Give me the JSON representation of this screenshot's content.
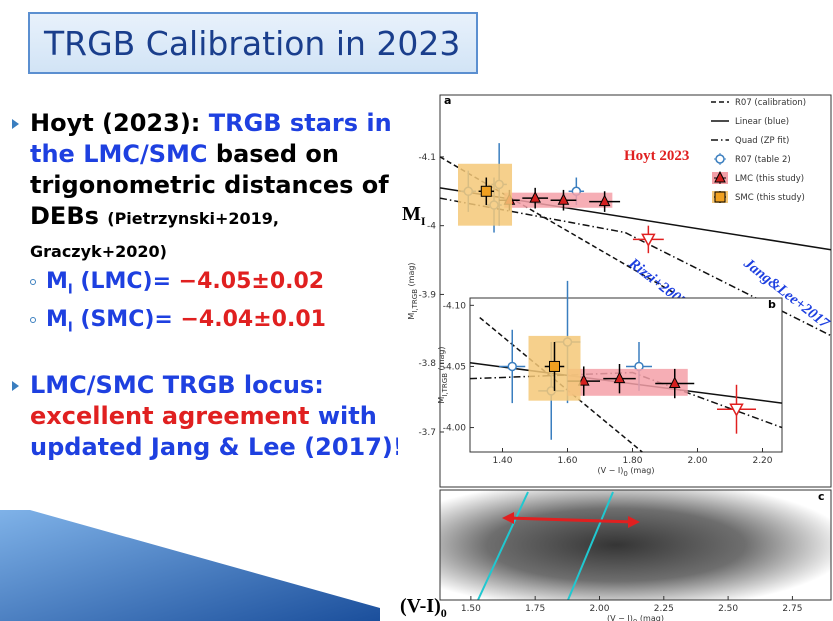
{
  "slide": {
    "title": "TRGB Calibration in 2023",
    "bullet1": {
      "lead": "Hoyt (2023): ",
      "highlight": "TRGB stars in the LMC/SMC",
      "rest": " based on trigonometric distances of DEBs",
      "refs": "(Pietrzynski+2019, Graczyk+2020)"
    },
    "sub": [
      {
        "m": "M",
        "sub": "I",
        "label": " (LMC)= ",
        "value": "−4.05±0.02"
      },
      {
        "m": "M",
        "sub": "I",
        "label": " (SMC)= ",
        "value": "−4.04±0.01"
      }
    ],
    "bullet2": {
      "line1": "LMC/SMC TRGB locus:",
      "emph": "excellent agreement",
      "tail": "  with",
      "line3": "updated Jang & Lee (2017)!"
    },
    "fig_labels": {
      "m": "M",
      "m_sub": "I",
      "vi": "(V-I)",
      "vi_sub": "0"
    }
  },
  "chart_data": [
    {
      "type": "scatter",
      "panel": "a",
      "ylabel": [
        "M",
        "I,TRGB",
        " (mag)"
      ],
      "xlim": [
        1.38,
        2.9
      ],
      "ylim": [
        -4.19,
        -3.62
      ],
      "y_inverted": true,
      "yticks": [
        -4.1,
        -4.0,
        -3.9,
        -3.8,
        -3.7
      ],
      "legend": "top-right",
      "series": [
        {
          "name": "R07 (calibration)",
          "kind": "line",
          "dash": "dashed",
          "color": "#111111",
          "x": [
            1.38,
            2.3
          ],
          "values": [
            -4.1,
            -3.9
          ]
        },
        {
          "name": "Linear (blue)",
          "kind": "line",
          "dash": "solid",
          "color": "#111111",
          "x": [
            1.38,
            2.9
          ],
          "values": [
            -4.055,
            -3.965
          ]
        },
        {
          "name": "Quad (ZP fit)",
          "kind": "line",
          "dash": "dashdot",
          "color": "#111111",
          "x": [
            1.38,
            2.1,
            2.9
          ],
          "values": [
            -4.04,
            -3.99,
            -3.84
          ]
        },
        {
          "name": "R07 (table 2)",
          "kind": "points",
          "marker": "circle-open",
          "color": "#3a7ebf",
          "x": [
            1.49,
            1.59,
            1.61,
            1.91
          ],
          "values": [
            -4.05,
            -4.03,
            -4.06,
            -4.05
          ],
          "xerr": [
            0.03,
            0.03,
            0.03,
            0.03
          ],
          "yerr": [
            0.03,
            0.04,
            0.06,
            0.02
          ]
        },
        {
          "name": "LMC (this study)",
          "kind": "points",
          "marker": "triangle",
          "color": "#d42020",
          "band_color": "#f4a0a8",
          "band": {
            "x": [
              1.63,
              2.05
            ],
            "y": [
              -4.048,
              -4.026
            ]
          },
          "x": [
            1.65,
            1.75,
            1.86,
            2.02
          ],
          "values": [
            -4.037,
            -4.04,
            -4.037,
            -4.035
          ],
          "xerr": [
            0.04,
            0.05,
            0.05,
            0.06
          ],
          "yerr": [
            0.015,
            0.015,
            0.015,
            0.015
          ]
        },
        {
          "name": "SMC (this study)",
          "kind": "points",
          "marker": "square",
          "color": "#f0a020",
          "band_color": "#f5c878",
          "band": {
            "x": [
              1.45,
              1.66
            ],
            "y": [
              -4.09,
              -4.0
            ]
          },
          "x": [
            1.56
          ],
          "values": [
            -4.05
          ],
          "xerr": [
            0.03
          ],
          "yerr": [
            0.02
          ]
        },
        {
          "kind": "points",
          "marker": "triangle-down-open",
          "color": "#e02020",
          "x": [
            2.19
          ],
          "values": [
            -3.98
          ],
          "xerr": [
            0.06
          ],
          "yerr": [
            0.02
          ]
        }
      ],
      "annotations": [
        "Hoyt 2023",
        "Rizzi+2007",
        "Jang&Lee+2017"
      ]
    },
    {
      "type": "scatter",
      "panel": "b",
      "ylabel": [
        "M",
        "I,TRGB",
        " (mag)"
      ],
      "xlabel": [
        "(V − I)",
        "0",
        " (mag)"
      ],
      "xlim": [
        1.3,
        2.26
      ],
      "ylim": [
        -4.106,
        -3.98
      ],
      "y_inverted": true,
      "xticks": [
        {
          "value": 1.4,
          "label": "1.40"
        },
        {
          "value": 1.6,
          "label": "1.60"
        },
        {
          "value": 1.8,
          "label": "1.80"
        },
        {
          "value": 2.0,
          "label": "2.00"
        },
        {
          "value": 2.2,
          "label": "2.20"
        }
      ],
      "yticks": [
        {
          "value": -4.1,
          "label": "-4.10"
        },
        {
          "value": -4.05,
          "label": "-4.05"
        },
        {
          "value": -4.0,
          "label": "-4.00"
        }
      ],
      "series": [
        {
          "kind": "line",
          "dash": "dashed",
          "color": "#111111",
          "x": [
            1.33,
            1.83
          ],
          "values": [
            -4.09,
            -3.98
          ]
        },
        {
          "kind": "line",
          "dash": "solid",
          "color": "#111111",
          "x": [
            1.3,
            2.26
          ],
          "values": [
            -4.053,
            -4.02
          ]
        },
        {
          "kind": "line",
          "dash": "dashdot",
          "color": "#111111",
          "x": [
            1.3,
            1.8,
            2.26
          ],
          "values": [
            -4.04,
            -4.045,
            -4.0
          ]
        },
        {
          "kind": "points",
          "marker": "circle-open",
          "color": "#3a7ebf",
          "x": [
            1.43,
            1.55,
            1.6,
            1.82
          ],
          "values": [
            -4.05,
            -4.03,
            -4.07,
            -4.05
          ],
          "xerr": [
            0.04,
            0.04,
            0.04,
            0.04
          ],
          "yerr": [
            0.03,
            0.04,
            0.05,
            0.02
          ]
        },
        {
          "kind": "points",
          "marker": "triangle",
          "color": "#d42020",
          "band_color": "#f4a0a8",
          "band": {
            "x": [
              1.6,
              1.97
            ],
            "y": [
              -4.048,
              -4.026
            ]
          },
          "x": [
            1.65,
            1.76,
            1.93
          ],
          "values": [
            -4.038,
            -4.04,
            -4.036
          ],
          "xerr": [
            0.05,
            0.05,
            0.06
          ],
          "yerr": [
            0.012,
            0.012,
            0.012
          ]
        },
        {
          "kind": "points",
          "marker": "square",
          "color": "#f0a020",
          "band_color": "#f5c878",
          "band": {
            "x": [
              1.48,
              1.64
            ],
            "y": [
              -4.075,
              -4.022
            ]
          },
          "x": [
            1.56
          ],
          "values": [
            -4.05
          ],
          "xerr": [
            0.03
          ],
          "yerr": [
            0.02
          ]
        },
        {
          "kind": "points",
          "marker": "triangle-down-open",
          "color": "#e02020",
          "x": [
            2.12
          ],
          "values": [
            -4.015
          ],
          "xerr": [
            0.06
          ],
          "yerr": [
            0.02
          ]
        }
      ]
    },
    {
      "type": "density",
      "panel": "c",
      "xlabel": [
        "(V − I)",
        "0",
        " (mag)"
      ],
      "xlim": [
        1.38,
        2.9
      ],
      "xticks": [
        {
          "value": 1.5,
          "label": "1.50"
        },
        {
          "value": 1.75,
          "label": "1.75"
        },
        {
          "value": 2.0,
          "label": "2.00"
        },
        {
          "value": 2.25,
          "label": "2.25"
        },
        {
          "value": 2.5,
          "label": "2.50"
        },
        {
          "value": 2.75,
          "label": "2.75"
        }
      ]
    }
  ]
}
